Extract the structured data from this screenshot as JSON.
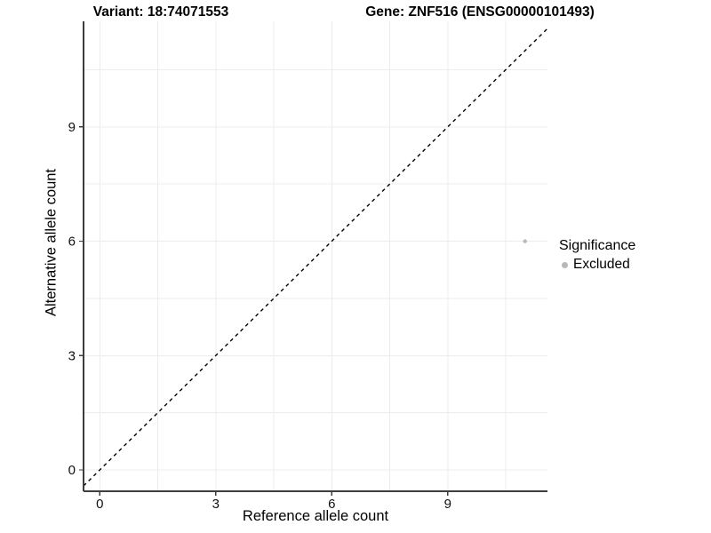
{
  "figure": {
    "title_variant": "Variant: 18:74071553",
    "title_gene": "Gene: ZNF516 (ENSG00000101493)"
  },
  "chart_data": {
    "type": "scatter",
    "xlabel": "Reference allele count",
    "ylabel": "Alternative allele count",
    "x_ticks": [
      "0",
      "3",
      "6",
      "9"
    ],
    "y_ticks": [
      "0",
      "3",
      "6",
      "9"
    ],
    "x_tick_values": [
      0,
      3,
      6,
      9
    ],
    "y_tick_values": [
      0,
      3,
      6,
      9
    ],
    "xlim": [
      -0.42,
      11.58
    ],
    "ylim": [
      -0.56,
      11.77
    ],
    "grid": "on",
    "grid_step": 1.5,
    "points": [
      {
        "x": 11,
        "y": 6,
        "significance": "Excluded"
      }
    ],
    "reference_line": {
      "slope": 1,
      "intercept": 0,
      "style": "dashed"
    },
    "legend": {
      "position": "right",
      "title": "Significance",
      "items": [
        {
          "label": "Excluded",
          "color": "#b8b8b8"
        }
      ]
    }
  },
  "colors": {
    "background": "#ffffff",
    "gridline": "#ececec",
    "axis_line": "#3d3d3d",
    "tick_mark": "#3d3d3d",
    "tick_label": "#111111",
    "reference_line": "#000000",
    "excluded_point": "#b8b8b8"
  }
}
